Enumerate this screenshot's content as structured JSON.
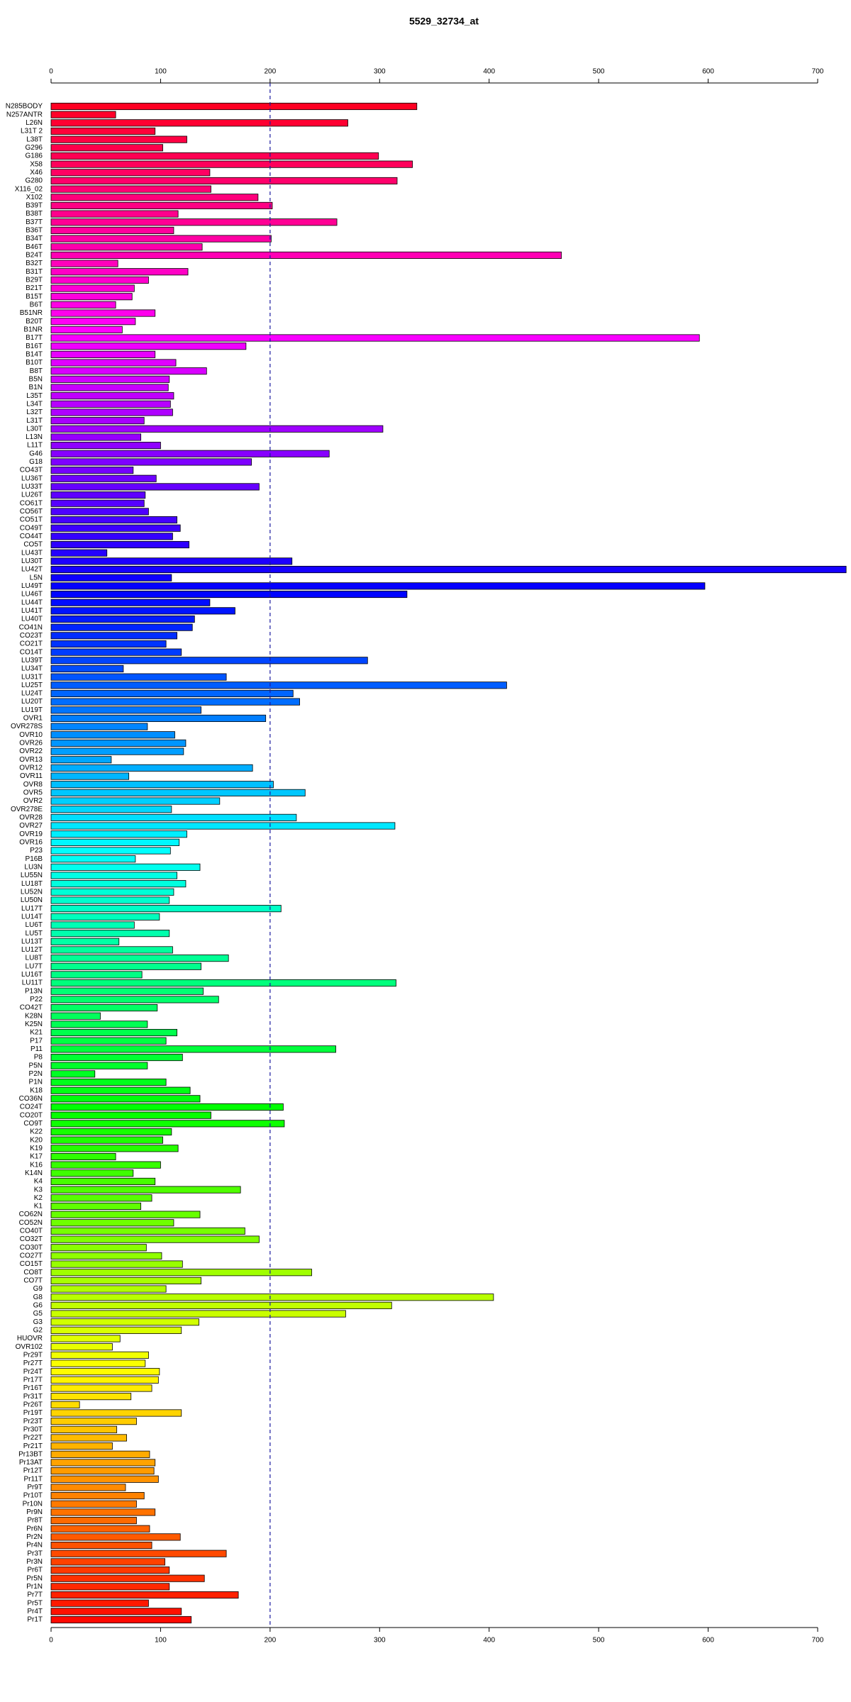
{
  "chart_data": {
    "type": "barh",
    "title": "5529_32734_at",
    "categories": [
      "N285BODY",
      "N257ANTR",
      "L26N",
      "L31T 2",
      "L38T",
      "G296",
      "G186",
      "X58",
      "X46",
      "G280",
      "X116_02",
      "X102",
      "B39T",
      "B38T",
      "B37T",
      "B36T",
      "B34T",
      "B46T",
      "B24T",
      "B32T",
      "B31T",
      "B29T",
      "B21T",
      "B15T",
      "B6T",
      "B51NR",
      "B20T",
      "B1NR",
      "B17T",
      "B16T",
      "B14T",
      "B10T",
      "B8T",
      "B5N",
      "B1N",
      "L35T",
      "L34T",
      "L32T",
      "L31T",
      "L30T",
      "L13N",
      "L11T",
      "G46",
      "G18",
      "CO43T",
      "LU36T",
      "LU33T",
      "LU26T",
      "CO61T",
      "CO56T",
      "CO51T",
      "CO49T",
      "CO44T",
      "CO5T",
      "LU43T",
      "LU30T",
      "LU42T",
      "L5N",
      "LU49T",
      "LU46T",
      "LU44T",
      "LU41T",
      "LU40T",
      "CO41N",
      "CO23T",
      "CO21T",
      "CO14T",
      "LU39T",
      "LU34T",
      "LU31T",
      "LU25T",
      "LU24T",
      "LU20T",
      "LU19T",
      "OVR1",
      "OVR278S",
      "OVR10",
      "OVR26",
      "OVR22",
      "OVR13",
      "OVR12",
      "OVR11",
      "OVR8",
      "OVR5",
      "OVR2",
      "OVR278E",
      "OVR28",
      "OVR27",
      "OVR19",
      "OVR16",
      "P23",
      "P16B",
      "LU3N",
      "LU55N",
      "LU18T",
      "LU52N",
      "LU50N",
      "LU17T",
      "LU14T",
      "LU6T",
      "LU5T",
      "LU13T",
      "LU12T",
      "LU8T",
      "LU7T",
      "LU16T",
      "LU11T",
      "P13N",
      "P22",
      "CO42T",
      "K28N",
      "K25N",
      "K21",
      "P17",
      "P11",
      "P8",
      "P5N",
      "P2N",
      "P1N",
      "K18",
      "CO36N",
      "CO24T",
      "CO20T",
      "CO9T",
      "K22",
      "K20",
      "K19",
      "K17",
      "K16",
      "K14N",
      "K4",
      "K3",
      "K2",
      "K1",
      "CO62N",
      "CO52N",
      "CO40T",
      "CO32T",
      "CO30T",
      "CO27T",
      "CO15T",
      "CO8T",
      "CO7T",
      "G9",
      "G8",
      "G6",
      "G5",
      "G3",
      "G2",
      "HUOVR",
      "OVR102",
      "Pr29T",
      "Pr27T",
      "Pr24T",
      "Pr17T",
      "Pr16T",
      "Pr31T",
      "Pr26T",
      "Pr19T",
      "Pr23T",
      "Pr30T",
      "Pr22T",
      "Pr21T",
      "Pr13BT",
      "Pr13AT",
      "Pr12T",
      "Pr11T",
      "Pr9T",
      "Pr10T",
      "Pr10N",
      "Pr9N",
      "Pr8T",
      "Pr6N",
      "Pr2N",
      "Pr4N",
      "Pr3T",
      "Pr3N",
      "Pr6T",
      "Pr5N",
      "Pr1N",
      "Pr7T",
      "Pr5T",
      "Pr4T",
      "Pr1T"
    ],
    "values": [
      334,
      59,
      271,
      95,
      124,
      102,
      299,
      330,
      145,
      316,
      146,
      189,
      202,
      116,
      261,
      112,
      201,
      138,
      466,
      61,
      125,
      89,
      76,
      74,
      59,
      95,
      77,
      65,
      592,
      178,
      95,
      114,
      142,
      108,
      107,
      112,
      109,
      111,
      85,
      303,
      82,
      100,
      254,
      183,
      75,
      96,
      190,
      86,
      85,
      89,
      115,
      118,
      111,
      126,
      51,
      220,
      726,
      110,
      597,
      325,
      145,
      168,
      131,
      129,
      115,
      105,
      119,
      289,
      66,
      160,
      416,
      221,
      227,
      137,
      196,
      88,
      113,
      123,
      121,
      55,
      184,
      71,
      203,
      232,
      154,
      110,
      224,
      314,
      124,
      117,
      109,
      77,
      136,
      115,
      123,
      112,
      108,
      210,
      99,
      76,
      108,
      62,
      111,
      162,
      137,
      83,
      315,
      139,
      153,
      97,
      45,
      88,
      115,
      105,
      260,
      120,
      88,
      40,
      105,
      127,
      136,
      212,
      146,
      213,
      110,
      102,
      116,
      59,
      100,
      75,
      95,
      173,
      92,
      82,
      136,
      112,
      177,
      190,
      87,
      101,
      120,
      238,
      137,
      105,
      404,
      311,
      269,
      135,
      119,
      63,
      56,
      89,
      86,
      99,
      98,
      92,
      73,
      26,
      119,
      78,
      60,
      69,
      56,
      90,
      95,
      94,
      98,
      68,
      85,
      78,
      95,
      78,
      90,
      118,
      92,
      160,
      104,
      108,
      140,
      108,
      171,
      89,
      119,
      128
    ],
    "palette": "rainbow",
    "xlim": [
      0,
      726
    ],
    "xticks": [
      0,
      100,
      200,
      300,
      400,
      500,
      600,
      700
    ],
    "reference_line": 200
  }
}
